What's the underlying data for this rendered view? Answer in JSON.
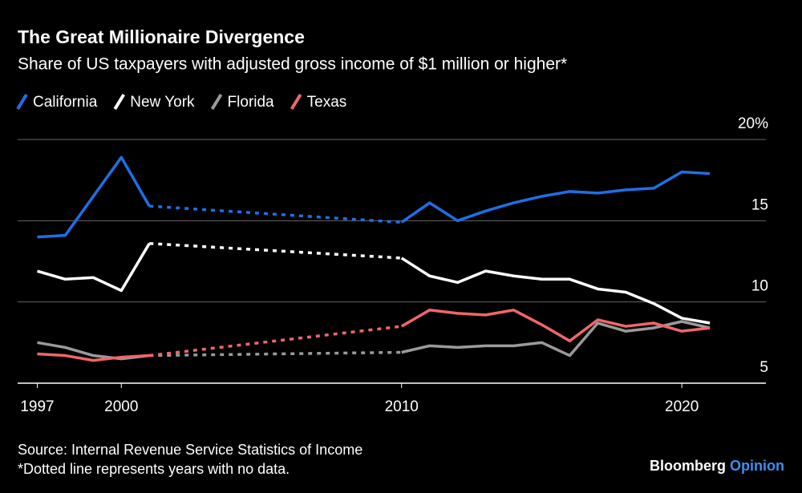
{
  "chart_data": {
    "type": "line",
    "title": "The Great Millionaire Divergence",
    "subtitle": "Share of US taxpayers with adjusted gross income of $1 million or higher*",
    "x": [
      1997,
      1998,
      1999,
      2000,
      2001,
      2002,
      2003,
      2004,
      2005,
      2006,
      2007,
      2008,
      2009,
      2010,
      2011,
      2012,
      2013,
      2014,
      2015,
      2016,
      2017,
      2018,
      2019,
      2020,
      2021
    ],
    "series": [
      {
        "name": "California",
        "color": "#1f6fe5",
        "values": [
          14.0,
          14.1,
          16.5,
          18.9,
          15.9,
          null,
          null,
          null,
          null,
          null,
          null,
          null,
          null,
          14.9,
          16.1,
          15.0,
          15.6,
          16.1,
          16.5,
          16.8,
          16.7,
          16.9,
          17.0,
          18.0,
          17.9
        ]
      },
      {
        "name": "New York",
        "color": "#ffffff",
        "values": [
          11.9,
          11.4,
          11.5,
          10.7,
          13.6,
          null,
          null,
          null,
          null,
          null,
          null,
          null,
          null,
          12.7,
          11.6,
          11.2,
          11.9,
          11.6,
          11.4,
          11.4,
          10.8,
          10.6,
          9.9,
          9.0,
          8.7
        ]
      },
      {
        "name": "Florida",
        "color": "#9a9a9a",
        "values": [
          7.5,
          7.2,
          6.7,
          6.5,
          6.7,
          null,
          null,
          null,
          null,
          null,
          null,
          null,
          null,
          6.9,
          7.3,
          7.2,
          7.3,
          7.3,
          7.5,
          6.7,
          8.7,
          8.2,
          8.4,
          8.8,
          8.4
        ]
      },
      {
        "name": "Texas",
        "color": "#f0666a",
        "values": [
          6.8,
          6.7,
          6.4,
          6.6,
          6.7,
          null,
          null,
          null,
          null,
          null,
          null,
          null,
          null,
          8.5,
          9.5,
          9.3,
          9.2,
          9.5,
          8.6,
          7.6,
          8.9,
          8.5,
          8.7,
          8.2,
          8.4
        ]
      }
    ],
    "xlim": [
      1996.3,
      2023
    ],
    "xticks": [
      1997,
      2000,
      2010,
      2020
    ],
    "ylim": [
      5,
      20
    ],
    "yticks": [
      5,
      10,
      15,
      {
        "value": 20,
        "label": "20%"
      }
    ],
    "grid": true,
    "source": "Source: Internal Revenue Service Statistics of Income",
    "note": "*Dotted line represents years with no data.",
    "brand": {
      "name": "Bloomberg",
      "suffix": "Opinion",
      "suffix_color": "#3d8ef0"
    }
  }
}
